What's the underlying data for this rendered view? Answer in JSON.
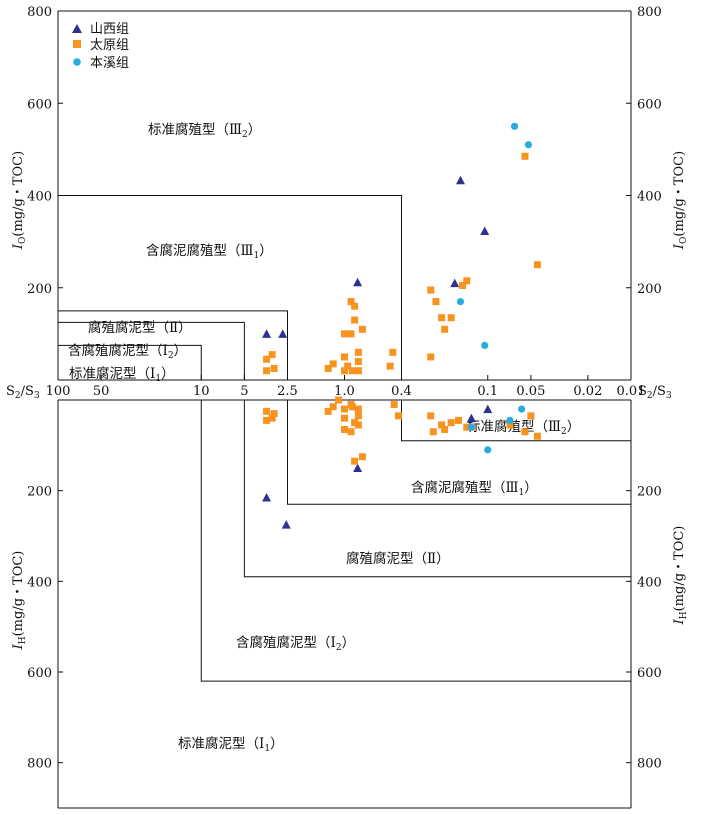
{
  "chart_data": {
    "type": "scatter",
    "colors": {
      "山西组": "#2e3192",
      "太原组": "#f7931e",
      "本溪组": "#29abe2"
    },
    "markers": {
      "山西组": "triangle",
      "太原组": "square",
      "本溪组": "circle"
    },
    "legend": {
      "position": "top-left",
      "items": [
        "山西组",
        "太原组",
        "本溪组"
      ]
    },
    "upper_panel": {
      "ylabel_main": "I",
      "ylabel_sub": "O",
      "ylabel_rest": "(mg/g・TOC)",
      "ylim": [
        0,
        800
      ],
      "yticks": [
        "200",
        "400",
        "600",
        "800"
      ],
      "regions": [
        {
          "text": "标准腐殖型（Ⅲ",
          "sub": "2",
          "close": "）"
        },
        {
          "text": "含腐泥腐殖型（Ⅲ",
          "sub": "1",
          "close": "）"
        },
        {
          "text": "腐殖腐泥型（Ⅱ）",
          "sub": "",
          "close": ""
        },
        {
          "text": "含腐殖腐泥型（Ⅰ",
          "sub": "2",
          "close": "）"
        },
        {
          "text": "标准腐泥型（Ⅰ",
          "sub": "1",
          "close": "）"
        }
      ]
    },
    "lower_panel": {
      "ylabel_main": "I",
      "ylabel_sub": "H",
      "ylabel_rest": "(mg/g・TOC)",
      "ylim": [
        0,
        900
      ],
      "yticks": [
        "200",
        "400",
        "600",
        "800"
      ],
      "regions": [
        {
          "text": "标准腐殖型（Ⅲ",
          "sub": "2",
          "close": "）"
        },
        {
          "text": "含腐泥腐殖型（Ⅲ",
          "sub": "1",
          "close": "）"
        },
        {
          "text": "腐殖腐泥型（Ⅱ）",
          "sub": "",
          "close": ""
        },
        {
          "text": "含腐殖腐泥型（Ⅰ",
          "sub": "2",
          "close": "）"
        },
        {
          "text": "标准腐泥型（Ⅰ",
          "sub": "1",
          "close": "）"
        }
      ]
    },
    "x_axis": {
      "label": "S₂/S₃",
      "scale": "log-reversed",
      "xlim": [
        100,
        0.01
      ],
      "ticks": [
        {
          "v": 100,
          "label": "100"
        },
        {
          "v": 50,
          "label": "50"
        },
        {
          "v": 10,
          "label": "10"
        },
        {
          "v": 5,
          "label": "5"
        },
        {
          "v": 2.5,
          "label": "2.5"
        },
        {
          "v": 1,
          "label": "1.0"
        },
        {
          "v": 0.4,
          "label": "0.4"
        },
        {
          "v": 0.1,
          "label": "0.1"
        },
        {
          "v": 0.05,
          "label": "0.05"
        },
        {
          "v": 0.02,
          "label": "0.02"
        },
        {
          "v": 0.01,
          "label": "0.01"
        }
      ]
    },
    "upper_boundaries": [
      {
        "x": [
          100,
          0.4
        ],
        "y": 400
      },
      {
        "x": [
          100,
          2.5
        ],
        "y": 150
      },
      {
        "x": [
          100,
          5
        ],
        "y": 125
      },
      {
        "x": [
          100,
          10
        ],
        "y": 75
      }
    ],
    "lower_boundaries": [
      {
        "x": 10,
        "y": 620
      },
      {
        "x": 5,
        "y": 390
      },
      {
        "x": 2.5,
        "y": 230
      },
      {
        "x": 0.4,
        "y": 90
      }
    ],
    "upper_series": [
      {
        "name": "山西组",
        "points": [
          [
            3.5,
            100
          ],
          [
            2.7,
            100
          ],
          [
            0.81,
            212
          ],
          [
            0.155,
            433
          ],
          [
            0.105,
            323
          ],
          [
            0.17,
            210
          ]
        ]
      },
      {
        "name": "太原组",
        "points": [
          [
            3.5,
            45
          ],
          [
            3.5,
            20
          ],
          [
            3.2,
            55
          ],
          [
            3.1,
            25
          ],
          [
            1.3,
            25
          ],
          [
            1.2,
            35
          ],
          [
            1.0,
            100
          ],
          [
            1.0,
            50
          ],
          [
            1.0,
            20
          ],
          [
            0.95,
            30
          ],
          [
            0.9,
            170
          ],
          [
            0.9,
            100
          ],
          [
            0.88,
            20
          ],
          [
            0.85,
            130
          ],
          [
            0.85,
            160
          ],
          [
            0.8,
            60
          ],
          [
            0.8,
            40
          ],
          [
            0.8,
            20
          ],
          [
            0.75,
            110
          ],
          [
            0.48,
            30
          ],
          [
            0.46,
            60
          ],
          [
            0.25,
            50
          ],
          [
            0.25,
            195
          ],
          [
            0.23,
            170
          ],
          [
            0.21,
            135
          ],
          [
            0.2,
            110
          ],
          [
            0.18,
            135
          ],
          [
            0.15,
            205
          ],
          [
            0.14,
            215
          ],
          [
            0.055,
            485
          ],
          [
            0.045,
            250
          ]
        ]
      },
      {
        "name": "本溪组",
        "points": [
          [
            0.155,
            170
          ],
          [
            0.105,
            75
          ],
          [
            0.065,
            550
          ],
          [
            0.052,
            510
          ]
        ]
      }
    ],
    "lower_series": [
      {
        "name": "山西组",
        "points": [
          [
            3.5,
            215
          ],
          [
            2.55,
            275
          ],
          [
            0.81,
            150
          ],
          [
            0.13,
            40
          ],
          [
            0.1,
            20
          ]
        ]
      },
      {
        "name": "太原组",
        "points": [
          [
            3.5,
            25
          ],
          [
            3.5,
            45
          ],
          [
            3.2,
            40
          ],
          [
            3.1,
            30
          ],
          [
            1.3,
            25
          ],
          [
            1.2,
            15
          ],
          [
            1.1,
            0
          ],
          [
            1.0,
            20
          ],
          [
            1.0,
            40
          ],
          [
            1.0,
            65
          ],
          [
            0.9,
            10
          ],
          [
            0.9,
            70
          ],
          [
            0.88,
            15
          ],
          [
            0.85,
            50
          ],
          [
            0.85,
            135
          ],
          [
            0.8,
            20
          ],
          [
            0.8,
            35
          ],
          [
            0.8,
            55
          ],
          [
            0.75,
            125
          ],
          [
            0.45,
            10
          ],
          [
            0.42,
            35
          ],
          [
            0.25,
            35
          ],
          [
            0.24,
            70
          ],
          [
            0.21,
            55
          ],
          [
            0.2,
            65
          ],
          [
            0.18,
            50
          ],
          [
            0.16,
            45
          ],
          [
            0.14,
            60
          ],
          [
            0.13,
            60
          ],
          [
            0.07,
            55
          ],
          [
            0.055,
            70
          ],
          [
            0.05,
            35
          ],
          [
            0.045,
            80
          ]
        ]
      },
      {
        "name": "本溪组",
        "points": [
          [
            0.13,
            60
          ],
          [
            0.1,
            110
          ],
          [
            0.07,
            45
          ],
          [
            0.058,
            20
          ]
        ]
      }
    ]
  }
}
